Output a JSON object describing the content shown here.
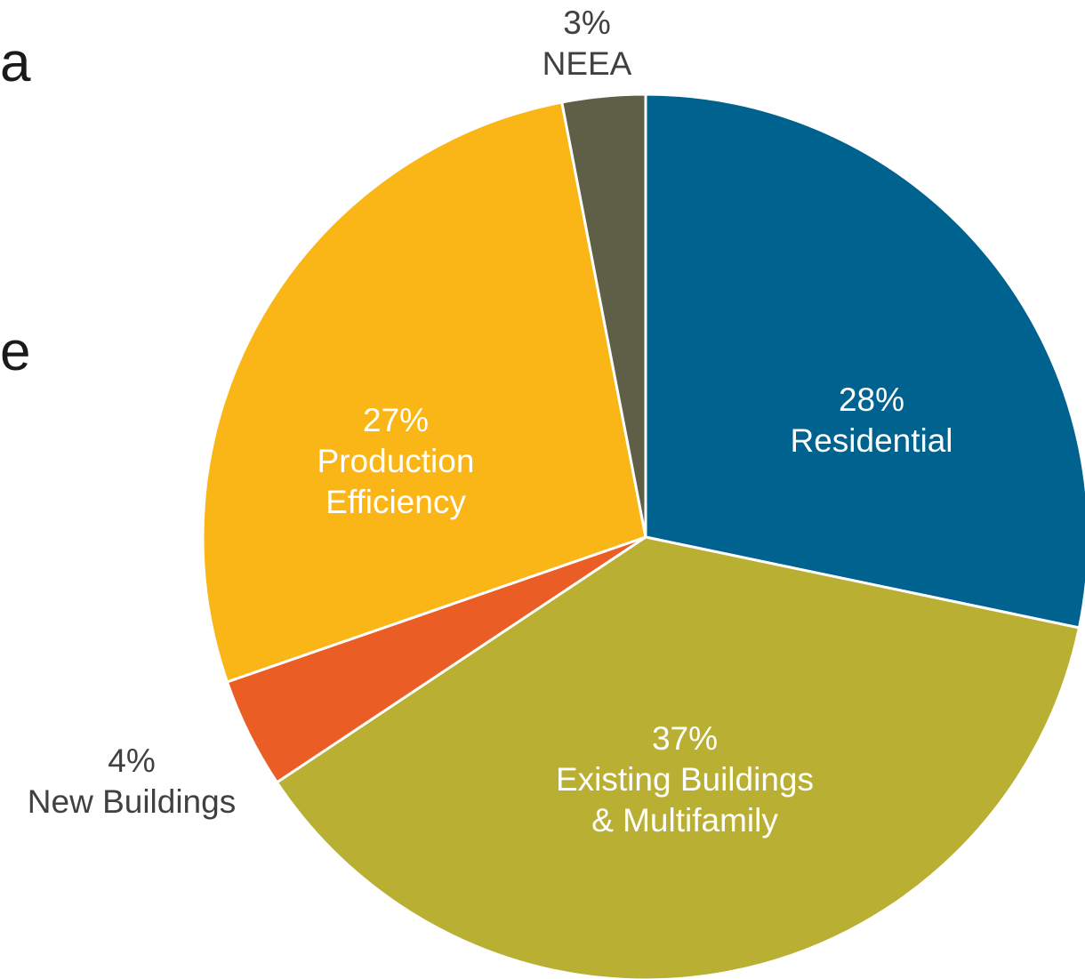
{
  "cropped_text": {
    "line1": "a",
    "line2": "e"
  },
  "chart_data": {
    "type": "pie",
    "title": "",
    "start_angle_deg": 0,
    "direction": "clockwise",
    "slices": [
      {
        "name": "Residential",
        "value": 28,
        "percent_label": "28%",
        "label_lines": [
          "Residential"
        ],
        "color": "#00628f",
        "label_color": "#ffffff",
        "label_position": "inside"
      },
      {
        "name": "Existing Buildings & Multifamily",
        "value": 37,
        "percent_label": "37%",
        "label_lines": [
          "Existing Buildings",
          "& Multifamily"
        ],
        "color": "#b9af33",
        "label_color": "#ffffff",
        "label_position": "inside"
      },
      {
        "name": "New Buildings",
        "value": 4,
        "percent_label": "4%",
        "label_lines": [
          "New Buildings"
        ],
        "color": "#ea5d24",
        "label_color": "#404040",
        "label_position": "outside"
      },
      {
        "name": "Production Efficiency",
        "value": 27,
        "percent_label": "27%",
        "label_lines": [
          "Production",
          "Efficiency"
        ],
        "color": "#fab516",
        "label_color": "#ffffff",
        "label_position": "inside"
      },
      {
        "name": "NEEA",
        "value": 3,
        "percent_label": "3%",
        "label_lines": [
          "NEEA"
        ],
        "color": "#5f5f48",
        "label_color": "#404040",
        "label_position": "outside"
      }
    ]
  }
}
